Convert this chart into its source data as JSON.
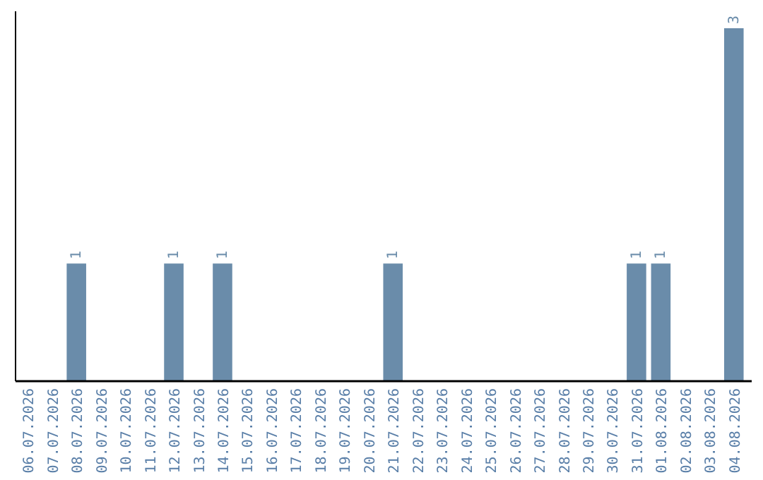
{
  "chart_data": {
    "type": "bar",
    "categories": [
      "06.07.2026",
      "07.07.2026",
      "08.07.2026",
      "09.07.2026",
      "10.07.2026",
      "11.07.2026",
      "12.07.2026",
      "13.07.2026",
      "14.07.2026",
      "15.07.2026",
      "16.07.2026",
      "17.07.2026",
      "18.07.2026",
      "19.07.2026",
      "20.07.2026",
      "21.07.2026",
      "22.07.2026",
      "23.07.2026",
      "24.07.2026",
      "25.07.2026",
      "26.07.2026",
      "27.07.2026",
      "28.07.2026",
      "29.07.2026",
      "30.07.2026",
      "31.07.2026",
      "01.08.2026",
      "02.08.2026",
      "03.08.2026",
      "04.08.2026"
    ],
    "values": [
      0,
      0,
      1,
      0,
      0,
      0,
      1,
      0,
      1,
      0,
      0,
      0,
      0,
      0,
      0,
      1,
      0,
      0,
      0,
      0,
      0,
      0,
      0,
      0,
      0,
      1,
      1,
      0,
      0,
      3
    ],
    "value_labels": [
      null,
      null,
      "1",
      null,
      null,
      null,
      "1",
      null,
      "1",
      null,
      null,
      null,
      null,
      null,
      null,
      "1",
      null,
      null,
      null,
      null,
      null,
      null,
      null,
      null,
      null,
      "1",
      "1",
      null,
      null,
      "3"
    ],
    "color": "#6a8caa",
    "tick_labels": "x",
    "grid": false
  }
}
